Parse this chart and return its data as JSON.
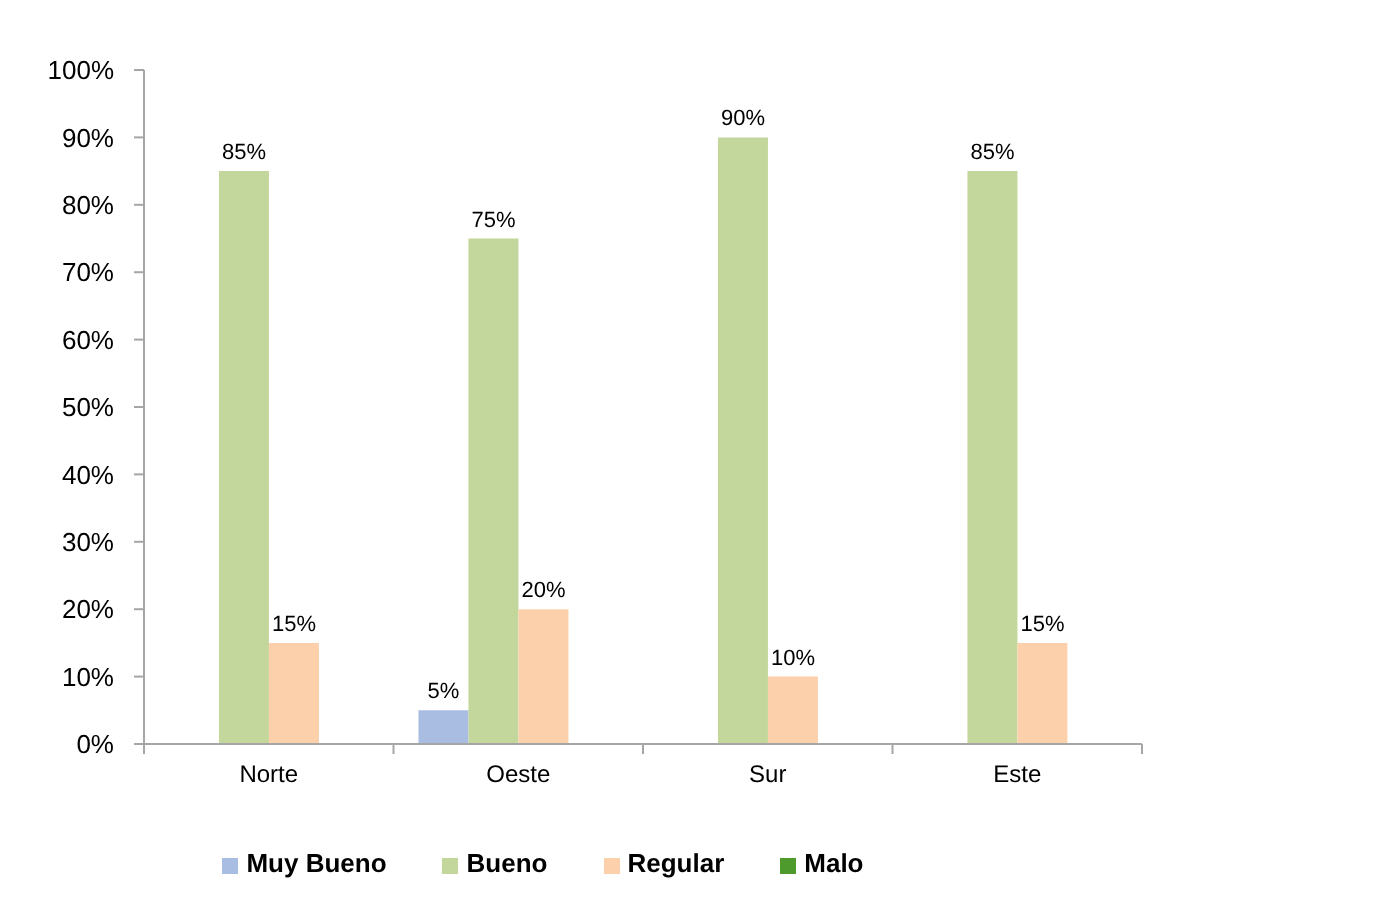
{
  "chart_data": {
    "type": "bar",
    "categories": [
      "Norte",
      "Oeste",
      "Sur",
      "Este"
    ],
    "series": [
      {
        "name": "Muy Bueno",
        "color": "#a9bde3",
        "values": [
          null,
          5,
          null,
          null
        ],
        "value_labels": [
          null,
          "5%",
          null,
          null
        ]
      },
      {
        "name": "Bueno",
        "color": "#c3d69b",
        "values": [
          85,
          75,
          90,
          85
        ],
        "value_labels": [
          "85%",
          "75%",
          "90%",
          "85%"
        ]
      },
      {
        "name": "Regular",
        "color": "#fbd0aa",
        "values": [
          15,
          20,
          10,
          15
        ],
        "value_labels": [
          "15%",
          "20%",
          "10%",
          "15%"
        ]
      },
      {
        "name": "Malo",
        "color": "#4f9a2c",
        "values": [
          null,
          null,
          null,
          null
        ]
      }
    ],
    "ylim": [
      0,
      100
    ],
    "yticks": [
      {
        "value": 0,
        "label": "0%"
      },
      {
        "value": 10,
        "label": "10%"
      },
      {
        "value": 20,
        "label": "20%"
      },
      {
        "value": 30,
        "label": "30%"
      },
      {
        "value": 40,
        "label": "40%"
      },
      {
        "value": 50,
        "label": "50%"
      },
      {
        "value": 60,
        "label": "60%"
      },
      {
        "value": 70,
        "label": "70%"
      },
      {
        "value": 80,
        "label": "80%"
      },
      {
        "value": 90,
        "label": "90%"
      },
      {
        "value": 100,
        "label": "100%"
      }
    ],
    "legend": "bottom"
  }
}
